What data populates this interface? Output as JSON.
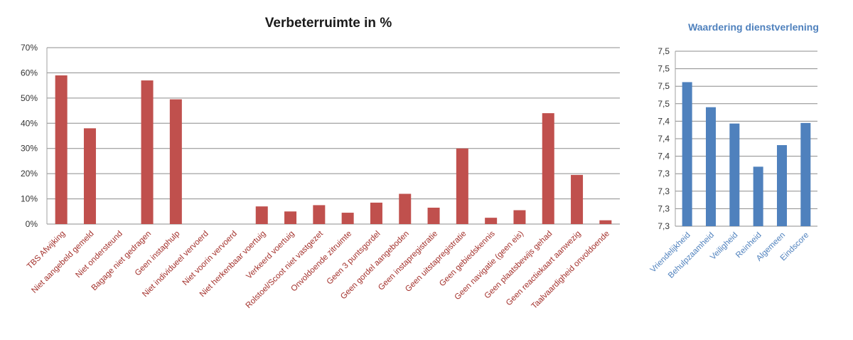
{
  "colors": {
    "left_bar": "#c0504d",
    "left_label": "#a3302b",
    "right_bar": "#4f81bd",
    "right_label": "#4f81bd",
    "grid": "#8c8c8c",
    "axis": "#a0a0a0"
  },
  "chart_data": [
    {
      "type": "bar",
      "title": "Verbeterruimte in %",
      "xlabel": "",
      "ylabel": "",
      "ylim": [
        0,
        70
      ],
      "yticks": [
        0,
        10,
        20,
        30,
        40,
        50,
        60,
        70
      ],
      "ytick_labels": [
        "0%",
        "10%",
        "20%",
        "30%",
        "40%",
        "50%",
        "60%",
        "70%"
      ],
      "grid": true,
      "categories": [
        "TBS Afwijking",
        "Niet aangebeld gemeld",
        "Niet ondersteund",
        "Bagage niet gedragen",
        "Geen instaphulp",
        "Niet individueel vervoerd",
        "Niet voorin vervoerd",
        "Niet herkenbaar voertuig",
        "Verkeerd voertuig",
        "Rolstoel/Scoot niet vastgezet",
        "Onvoldoende zitruimte",
        "Geen 3 puntsgordel",
        "Geen gordel aangeboden",
        "Geen instapregistratie",
        "Geen uitstapregistratie",
        "Geen gebiedskennis",
        "Geen navigatie (geen eis)",
        "Geen plaatsbewijs gehad",
        "Geen reactiekaart aanwezig",
        "Taalvaardigheid onvoldoende"
      ],
      "values": [
        59,
        38,
        0,
        57,
        49.5,
        0,
        0,
        7,
        5,
        7.5,
        4.5,
        8.5,
        12,
        6.5,
        30,
        2.5,
        5.5,
        44,
        19.5,
        1.5
      ]
    },
    {
      "type": "bar",
      "title": "Waardering dienstverlening",
      "xlabel": "",
      "ylabel": "",
      "ylim": [
        7.25,
        7.55
      ],
      "yticks": [
        7.25,
        7.28,
        7.31,
        7.34,
        7.37,
        7.4,
        7.43,
        7.46,
        7.49,
        7.52,
        7.55
      ],
      "ytick_labels": [
        "7,3",
        "7,3",
        "7,3",
        "7,3",
        "7,4",
        "7,4",
        "7,4",
        "7,5",
        "7,5",
        "7,5",
        "7,5"
      ],
      "grid": true,
      "categories": [
        "Vriendelijkheid",
        "Behulpzaamheid",
        "Veiligheid",
        "Reinheid",
        "Algemeen",
        "Eindscore"
      ],
      "values": [
        7.497,
        7.454,
        7.426,
        7.352,
        7.389,
        7.427
      ]
    }
  ]
}
